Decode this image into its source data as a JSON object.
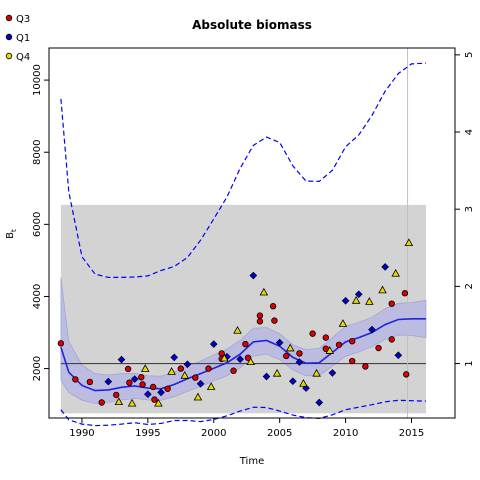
{
  "chart_data": {
    "type": "scatter",
    "title": "Absolute biomass",
    "xlabel": "Time",
    "ylabel": "B",
    "ylabel_subscript": "t",
    "xlim": [
      1987.5,
      2018.3
    ],
    "ylim": [
      630,
      10890
    ],
    "x_ticks": [
      1990,
      1995,
      2000,
      2005,
      2010,
      2015
    ],
    "y_ticks": [
      2000,
      4000,
      6000,
      8000,
      10000
    ],
    "y2_ticks": [
      1,
      2,
      3,
      4,
      5
    ],
    "y2_value_per_unit": 2140,
    "legend_position": "top-left",
    "colors": {
      "Q3": "#dd0000",
      "Q1": "#0000cc",
      "Q4": "#e8d800",
      "band": "#d3d3d3",
      "ci_fill": "#b4b4e6",
      "median_line": "#2222dd",
      "ci_dashed": "#0000ff",
      "hline": "#444444",
      "vline": "#c0c0c0"
    },
    "reference": {
      "band_y": [
        760,
        6540
      ],
      "band_x": [
        1988.4,
        2016.1
      ],
      "hline_y": 2140,
      "vline_x": 2014.7
    },
    "series": [
      {
        "name": "Q3",
        "marker": "circle",
        "points": [
          [
            1988.4,
            2700
          ],
          [
            1989.5,
            1700
          ],
          [
            1990.6,
            1630
          ],
          [
            1991.5,
            1060
          ],
          [
            1992.6,
            1270
          ],
          [
            1993.5,
            1990
          ],
          [
            1993.6,
            1610
          ],
          [
            1994.5,
            1760
          ],
          [
            1994.6,
            1560
          ],
          [
            1995.4,
            1490
          ],
          [
            1995.5,
            1140
          ],
          [
            1996.5,
            1440
          ],
          [
            1997.5,
            2000
          ],
          [
            1998.6,
            1750
          ],
          [
            1999.6,
            2000
          ],
          [
            2000.6,
            2420
          ],
          [
            2000.6,
            2270
          ],
          [
            2001.5,
            1940
          ],
          [
            2002.4,
            2680
          ],
          [
            2002.6,
            2300
          ],
          [
            2003.5,
            3470
          ],
          [
            2003.5,
            3310
          ],
          [
            2004.5,
            3730
          ],
          [
            2004.6,
            3330
          ],
          [
            2005.5,
            2350
          ],
          [
            2006.5,
            2420
          ],
          [
            2007.5,
            2970
          ],
          [
            2008.5,
            2860
          ],
          [
            2008.5,
            2550
          ],
          [
            2009.5,
            2660
          ],
          [
            2010.5,
            2760
          ],
          [
            2010.5,
            2210
          ],
          [
            2011.5,
            2060
          ],
          [
            2012.5,
            2570
          ],
          [
            2013.5,
            3800
          ],
          [
            2013.5,
            2810
          ],
          [
            2014.5,
            4090
          ],
          [
            2014.6,
            1840
          ]
        ]
      },
      {
        "name": "Q1",
        "marker": "diamond",
        "points": [
          [
            1992.0,
            1640
          ],
          [
            1993.0,
            2250
          ],
          [
            1994.0,
            1710
          ],
          [
            1995.0,
            1290
          ],
          [
            1996.0,
            1340
          ],
          [
            1997.0,
            2310
          ],
          [
            1998.0,
            2120
          ],
          [
            1999.0,
            1580
          ],
          [
            2000.0,
            2680
          ],
          [
            2001.0,
            2330
          ],
          [
            2002.0,
            2260
          ],
          [
            2003.0,
            4580
          ],
          [
            2004.0,
            1780
          ],
          [
            2005.0,
            2720
          ],
          [
            2006.0,
            1650
          ],
          [
            2006.5,
            2180
          ],
          [
            2007.0,
            1460
          ],
          [
            2008.0,
            1060
          ],
          [
            2009.0,
            1880
          ],
          [
            2010.0,
            3880
          ],
          [
            2011.0,
            4060
          ],
          [
            2012.0,
            3080
          ],
          [
            2013.0,
            4820
          ],
          [
            2014.0,
            2370
          ]
        ]
      },
      {
        "name": "Q4",
        "marker": "triangle",
        "points": [
          [
            1992.8,
            1080
          ],
          [
            1993.8,
            1040
          ],
          [
            1994.8,
            2000
          ],
          [
            1995.8,
            1040
          ],
          [
            1996.8,
            1920
          ],
          [
            1997.8,
            1810
          ],
          [
            1998.8,
            1210
          ],
          [
            1999.8,
            1500
          ],
          [
            2000.8,
            2290
          ],
          [
            2001.8,
            3060
          ],
          [
            2002.8,
            2190
          ],
          [
            2003.8,
            4120
          ],
          [
            2004.8,
            1870
          ],
          [
            2005.8,
            2570
          ],
          [
            2006.8,
            1590
          ],
          [
            2007.8,
            1870
          ],
          [
            2008.8,
            2500
          ],
          [
            2009.8,
            3250
          ],
          [
            2010.8,
            3890
          ],
          [
            2011.8,
            3860
          ],
          [
            2012.8,
            4180
          ],
          [
            2013.8,
            4640
          ],
          [
            2014.8,
            5490
          ]
        ]
      }
    ],
    "fit": {
      "median": [
        [
          1988.4,
          2590
        ],
        [
          1989,
          1900
        ],
        [
          1990,
          1530
        ],
        [
          1991,
          1390
        ],
        [
          1992,
          1410
        ],
        [
          1993,
          1480
        ],
        [
          1994,
          1520
        ],
        [
          1995,
          1460
        ],
        [
          1996,
          1440
        ],
        [
          1997,
          1560
        ],
        [
          1998,
          1720
        ],
        [
          1999,
          1860
        ],
        [
          2000,
          2010
        ],
        [
          2001,
          2160
        ],
        [
          2002,
          2400
        ],
        [
          2003,
          2740
        ],
        [
          2004,
          2780
        ],
        [
          2005,
          2620
        ],
        [
          2006,
          2310
        ],
        [
          2007,
          2150
        ],
        [
          2008,
          2160
        ],
        [
          2009,
          2450
        ],
        [
          2010,
          2740
        ],
        [
          2011,
          2860
        ],
        [
          2012,
          3000
        ],
        [
          2013,
          3220
        ],
        [
          2014,
          3360
        ],
        [
          2015,
          3380
        ],
        [
          2016.1,
          3380
        ]
      ],
      "ci_band_upper": [
        [
          1988.4,
          4530
        ],
        [
          1989,
          2750
        ],
        [
          1990,
          2100
        ],
        [
          1991,
          1860
        ],
        [
          1992,
          1820
        ],
        [
          1993,
          1860
        ],
        [
          1994,
          1870
        ],
        [
          1995,
          1800
        ],
        [
          1996,
          1790
        ],
        [
          1997,
          1900
        ],
        [
          1998,
          2060
        ],
        [
          1999,
          2210
        ],
        [
          2000,
          2380
        ],
        [
          2001,
          2540
        ],
        [
          2002,
          2780
        ],
        [
          2003,
          3120
        ],
        [
          2004,
          3140
        ],
        [
          2005,
          2970
        ],
        [
          2006,
          2660
        ],
        [
          2007,
          2530
        ],
        [
          2008,
          2560
        ],
        [
          2009,
          2860
        ],
        [
          2010,
          3170
        ],
        [
          2011,
          3290
        ],
        [
          2012,
          3420
        ],
        [
          2013,
          3660
        ],
        [
          2014,
          3810
        ],
        [
          2015,
          3830
        ],
        [
          2016.1,
          3890
        ]
      ],
      "ci_band_lower": [
        [
          1988.4,
          1680
        ],
        [
          1989,
          1340
        ],
        [
          1990,
          1120
        ],
        [
          1991,
          1030
        ],
        [
          1992,
          1060
        ],
        [
          1993,
          1130
        ],
        [
          1994,
          1170
        ],
        [
          1995,
          1130
        ],
        [
          1996,
          1120
        ],
        [
          1997,
          1220
        ],
        [
          1998,
          1370
        ],
        [
          1999,
          1500
        ],
        [
          2000,
          1660
        ],
        [
          2001,
          1800
        ],
        [
          2002,
          2020
        ],
        [
          2003,
          2350
        ],
        [
          2004,
          2400
        ],
        [
          2005,
          2250
        ],
        [
          2006,
          1960
        ],
        [
          2007,
          1800
        ],
        [
          2008,
          1800
        ],
        [
          2009,
          2070
        ],
        [
          2010,
          2340
        ],
        [
          2011,
          2460
        ],
        [
          2012,
          2610
        ],
        [
          2013,
          2810
        ],
        [
          2014,
          2930
        ],
        [
          2015,
          2920
        ],
        [
          2016.1,
          2860
        ]
      ],
      "pred_upper": [
        [
          1988.4,
          9480
        ],
        [
          1989,
          6900
        ],
        [
          1990,
          5100
        ],
        [
          1991,
          4620
        ],
        [
          1992,
          4530
        ],
        [
          1993,
          4530
        ],
        [
          1994,
          4540
        ],
        [
          1995,
          4570
        ],
        [
          1996,
          4720
        ],
        [
          1997,
          4830
        ],
        [
          1998,
          5080
        ],
        [
          1999,
          5560
        ],
        [
          2000,
          6150
        ],
        [
          2001,
          6760
        ],
        [
          2002,
          7550
        ],
        [
          2003,
          8190
        ],
        [
          2004,
          8420
        ],
        [
          2005,
          8270
        ],
        [
          2006,
          7620
        ],
        [
          2007,
          7200
        ],
        [
          2008,
          7190
        ],
        [
          2009,
          7500
        ],
        [
          2010,
          8150
        ],
        [
          2011,
          8480
        ],
        [
          2012,
          9020
        ],
        [
          2013,
          9690
        ],
        [
          2014,
          10180
        ],
        [
          2015,
          10450
        ],
        [
          2016.1,
          10470
        ]
      ],
      "pred_lower": [
        [
          1988.4,
          860
        ],
        [
          1989,
          580
        ],
        [
          1990,
          460
        ],
        [
          1991,
          420
        ],
        [
          1992,
          430
        ],
        [
          1993,
          460
        ],
        [
          1994,
          500
        ],
        [
          1995,
          450
        ],
        [
          1996,
          480
        ],
        [
          1997,
          560
        ],
        [
          1998,
          560
        ],
        [
          1999,
          530
        ],
        [
          2000,
          590
        ],
        [
          2001,
          690
        ],
        [
          2002,
          820
        ],
        [
          2003,
          930
        ],
        [
          2004,
          920
        ],
        [
          2005,
          820
        ],
        [
          2006,
          710
        ],
        [
          2007,
          640
        ],
        [
          2008,
          620
        ],
        [
          2009,
          720
        ],
        [
          2010,
          860
        ],
        [
          2011,
          930
        ],
        [
          2012,
          1000
        ],
        [
          2013,
          1080
        ],
        [
          2014,
          1120
        ],
        [
          2015,
          1110
        ],
        [
          2016.1,
          1100
        ]
      ]
    }
  }
}
